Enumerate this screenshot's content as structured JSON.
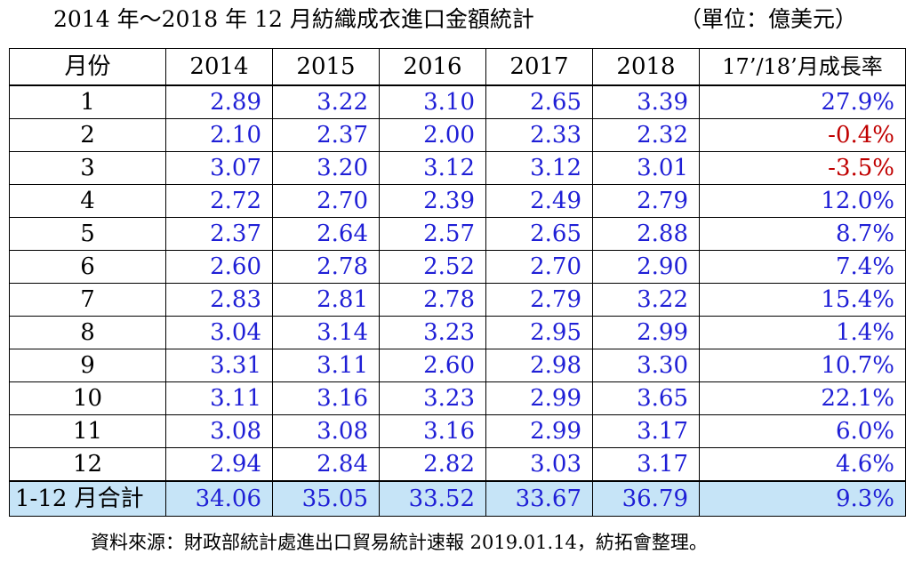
{
  "title": "2014 年～2018 年 12 月紡織成衣進口金額統計",
  "unit": "（單位：億美元）",
  "headers": [
    "月份",
    "2014",
    "2015",
    "2016",
    "2017",
    "2018",
    "17’/18’月成長率"
  ],
  "rows": [
    {
      "month": "1",
      "values": [
        "2.89",
        "3.22",
        "3.10",
        "2.65",
        "3.39"
      ],
      "rate": "27.9%"
    },
    {
      "month": "2",
      "values": [
        "2.10",
        "2.37",
        "2.00",
        "2.33",
        "2.32"
      ],
      "rate": "-0.4%"
    },
    {
      "month": "3",
      "values": [
        "3.07",
        "3.20",
        "3.12",
        "3.12",
        "3.01"
      ],
      "rate": "-3.5%"
    },
    {
      "month": "4",
      "values": [
        "2.72",
        "2.70",
        "2.39",
        "2.49",
        "2.79"
      ],
      "rate": "12.0%"
    },
    {
      "month": "5",
      "values": [
        "2.37",
        "2.64",
        "2.57",
        "2.65",
        "2.88"
      ],
      "rate": "8.7%"
    },
    {
      "month": "6",
      "values": [
        "2.60",
        "2.78",
        "2.52",
        "2.70",
        "2.90"
      ],
      "rate": "7.4%"
    },
    {
      "month": "7",
      "values": [
        "2.83",
        "2.81",
        "2.78",
        "2.79",
        "3.22"
      ],
      "rate": "15.4%"
    },
    {
      "month": "8",
      "values": [
        "3.04",
        "3.14",
        "3.23",
        "2.95",
        "2.99"
      ],
      "rate": "1.4%"
    },
    {
      "month": "9",
      "values": [
        "3.31",
        "3.11",
        "2.60",
        "2.98",
        "3.30"
      ],
      "rate": "10.7%"
    },
    {
      "month": "10",
      "values": [
        "3.11",
        "3.16",
        "3.23",
        "2.99",
        "3.65"
      ],
      "rate": "22.1%"
    },
    {
      "month": "11",
      "values": [
        "3.08",
        "3.08",
        "3.16",
        "2.99",
        "3.17"
      ],
      "rate": "6.0%"
    },
    {
      "month": "12",
      "values": [
        "2.94",
        "2.84",
        "2.82",
        "3.03",
        "3.17"
      ],
      "rate": "4.6%"
    }
  ],
  "total": {
    "month": "1-12 月合計",
    "values": [
      "34.06",
      "35.05",
      "33.52",
      "33.67",
      "36.79"
    ],
    "rate": "9.3%"
  },
  "source": "資料來源：財政部統計處進出口貿易統計速報 2019.01.14，紡拓會整理。",
  "colors": {
    "value_text": "#1f1fd6",
    "negative_rate": "#c00000",
    "total_row_bg": "#c6e4f7"
  }
}
